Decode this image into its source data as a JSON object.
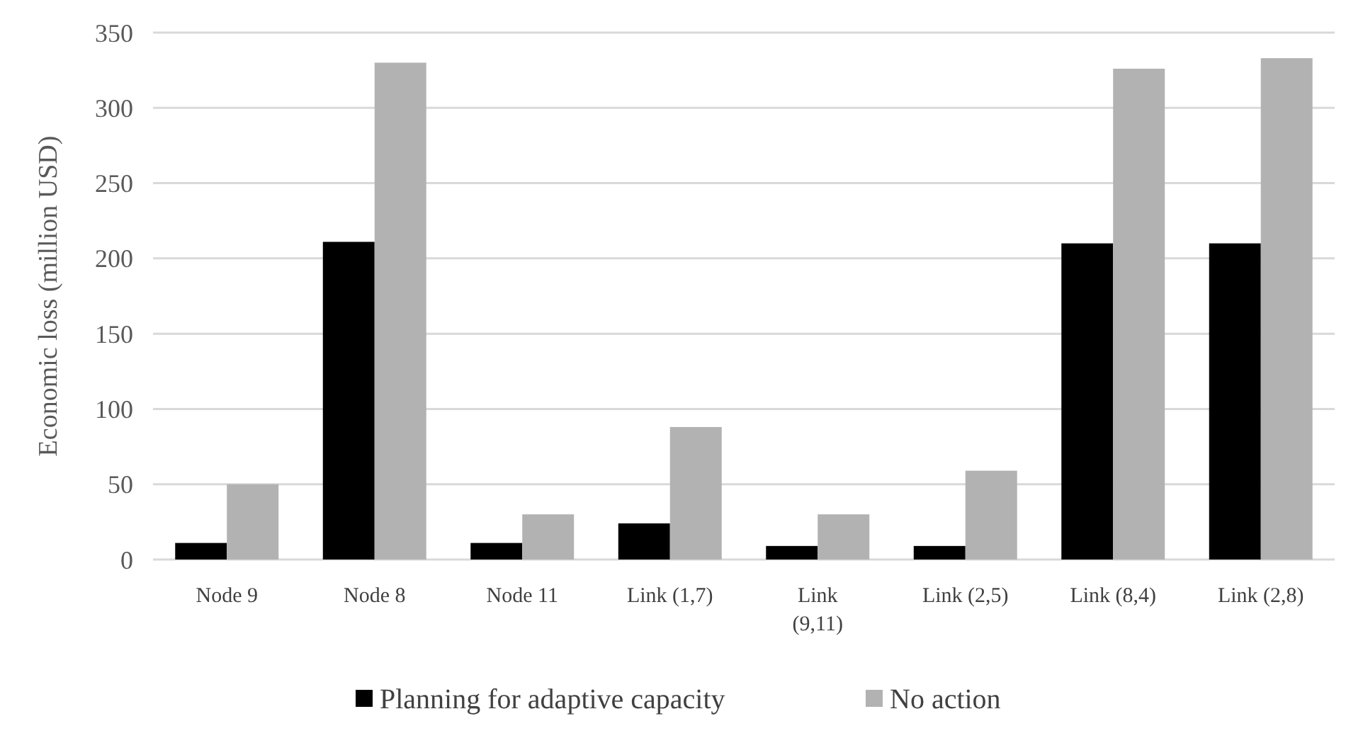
{
  "chart_data": {
    "type": "bar",
    "ylabel": "Economic loss (million USD)",
    "categories": [
      "Node 9",
      "Node 8",
      "Node 11",
      "Link (1,7)",
      "Link (9,11)",
      "Link (2,5)",
      "Link (8,4)",
      "Link (2,8)"
    ],
    "series": [
      {
        "name": "Planning for adaptive capacity",
        "color": "#000000",
        "values": [
          11,
          211,
          11,
          24,
          9,
          9,
          210,
          210
        ]
      },
      {
        "name": "No action",
        "color": "#b2b2b2",
        "values": [
          50,
          330,
          30,
          88,
          30,
          59,
          326,
          333
        ]
      }
    ],
    "ylim": [
      0,
      350
    ],
    "yticks": [
      0,
      50,
      100,
      150,
      200,
      250,
      300,
      350
    ],
    "grid": "y",
    "legend": "bottom"
  }
}
